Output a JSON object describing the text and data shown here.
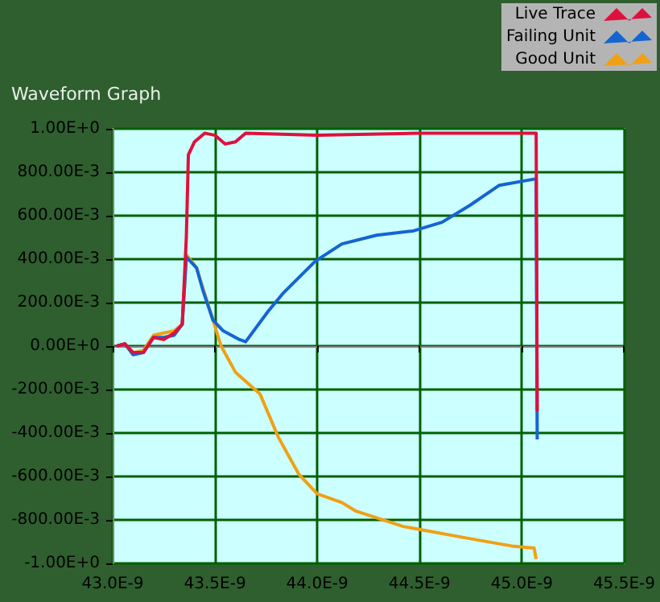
{
  "chart_data": {
    "type": "line",
    "title": "Waveform Graph",
    "legend": "top right",
    "grid": true,
    "marker": "none",
    "line_style": "solid",
    "xlim": [
      4.3e-08,
      4.55e-08
    ],
    "xticks": [
      {
        "value": 4.3e-08,
        "label": "43.0E-9"
      },
      {
        "value": 4.35e-08,
        "label": "43.5E-9"
      },
      {
        "value": 4.4e-08,
        "label": "44.0E-9"
      },
      {
        "value": 4.45e-08,
        "label": "44.5E-9"
      },
      {
        "value": 4.5e-08,
        "label": "45.0E-9"
      },
      {
        "value": 4.55e-08,
        "label": "45.5E-9"
      }
    ],
    "ylim": [
      -1,
      1
    ],
    "yticks": [
      {
        "value": -1,
        "label": "-1.00E+0"
      },
      {
        "value": -0.8,
        "label": "-800.00E-3"
      },
      {
        "value": -0.6,
        "label": "-600.00E-3"
      },
      {
        "value": -0.4,
        "label": "-400.00E-3"
      },
      {
        "value": -0.2,
        "label": "-200.00E-3"
      },
      {
        "value": 0,
        "label": "0.00E+0"
      },
      {
        "value": 0.2,
        "label": "200.00E-3"
      },
      {
        "value": 0.4,
        "label": "400.00E-3"
      },
      {
        "value": 0.6,
        "label": "600.00E-3"
      },
      {
        "value": 0.8,
        "label": "800.00E-3"
      },
      {
        "value": 1,
        "label": "1.00E+0"
      }
    ],
    "series": [
      {
        "name": "Live Trace",
        "color": "#e0103c",
        "x": [
          4.302e-08,
          4.306e-08,
          4.31e-08,
          4.315e-08,
          4.32e-08,
          4.325e-08,
          4.33e-08,
          4.334e-08,
          4.336e-08,
          4.337e-08,
          4.339e-08,
          4.34e-08,
          4.345e-08,
          4.35e-08,
          4.355e-08,
          4.36e-08,
          4.365e-08,
          4.4e-08,
          4.45e-08,
          4.5e-08,
          4.507e-08,
          4.5075e-08
        ],
        "values": [
          0,
          0.01,
          -0.03,
          -0.03,
          0.04,
          0.03,
          0.06,
          0.1,
          0.5,
          0.88,
          0.92,
          0.94,
          0.98,
          0.97,
          0.93,
          0.94,
          0.98,
          0.97,
          0.98,
          0.98,
          0.98,
          -0.3
        ]
      },
      {
        "name": "Failing Unit",
        "color": "#1464d2",
        "x": [
          4.302e-08,
          4.306e-08,
          4.31e-08,
          4.315e-08,
          4.32e-08,
          4.325e-08,
          4.33e-08,
          4.334e-08,
          4.336e-08,
          4.341e-08,
          4.344e-08,
          4.349e-08,
          4.354e-08,
          4.362e-08,
          4.365e-08,
          4.376e-08,
          4.383e-08,
          4.399e-08,
          4.412e-08,
          4.429e-08,
          4.447e-08,
          4.461e-08,
          4.475e-08,
          4.489e-08,
          4.507e-08,
          4.5075e-08
        ],
        "values": [
          0,
          0.01,
          -0.04,
          -0.03,
          0.04,
          0.04,
          0.05,
          0.1,
          0.41,
          0.36,
          0.26,
          0.12,
          0.07,
          0.03,
          0.02,
          0.16,
          0.24,
          0.39,
          0.47,
          0.51,
          0.53,
          0.57,
          0.65,
          0.74,
          0.77,
          -0.43
        ]
      },
      {
        "name": "Good Unit",
        "color": "#f0a014",
        "x": [
          4.302e-08,
          4.306e-08,
          4.31e-08,
          4.315e-08,
          4.32e-08,
          4.325e-08,
          4.33e-08,
          4.334e-08,
          4.336e-08,
          4.341e-08,
          4.349e-08,
          4.353e-08,
          4.36e-08,
          4.372e-08,
          4.381e-08,
          4.391e-08,
          4.4e-08,
          4.412e-08,
          4.419e-08,
          4.442e-08,
          4.471e-08,
          4.495e-08,
          4.506e-08,
          4.507e-08
        ],
        "values": [
          0,
          0.01,
          -0.03,
          -0.02,
          0.05,
          0.06,
          0.07,
          0.1,
          0.42,
          0.36,
          0.12,
          0,
          -0.12,
          -0.22,
          -0.42,
          -0.59,
          -0.68,
          -0.72,
          -0.76,
          -0.83,
          -0.88,
          -0.92,
          -0.93,
          -0.98
        ]
      }
    ]
  }
}
